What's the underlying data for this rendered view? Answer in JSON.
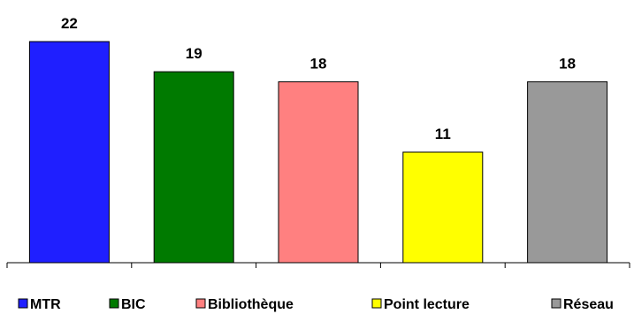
{
  "chart_data": {
    "type": "bar",
    "categories": [
      "MTR",
      "BIC",
      "Bibliothèque",
      "Point lecture",
      "Réseau"
    ],
    "values": [
      22,
      19,
      18,
      11,
      18
    ],
    "data_labels": [
      "22",
      "19",
      "18",
      "11",
      "18"
    ],
    "colors": [
      "#1f1fff",
      "#007a00",
      "#ff8080",
      "#ffff00",
      "#999999"
    ],
    "ylim": [
      0,
      22
    ],
    "grid": false,
    "legend": {
      "position": "bottom",
      "entries": [
        "MTR",
        "BIC",
        "Bibliothèque",
        "Point lecture",
        "Réseau"
      ]
    },
    "title": "",
    "xlabel": "",
    "ylabel": ""
  }
}
